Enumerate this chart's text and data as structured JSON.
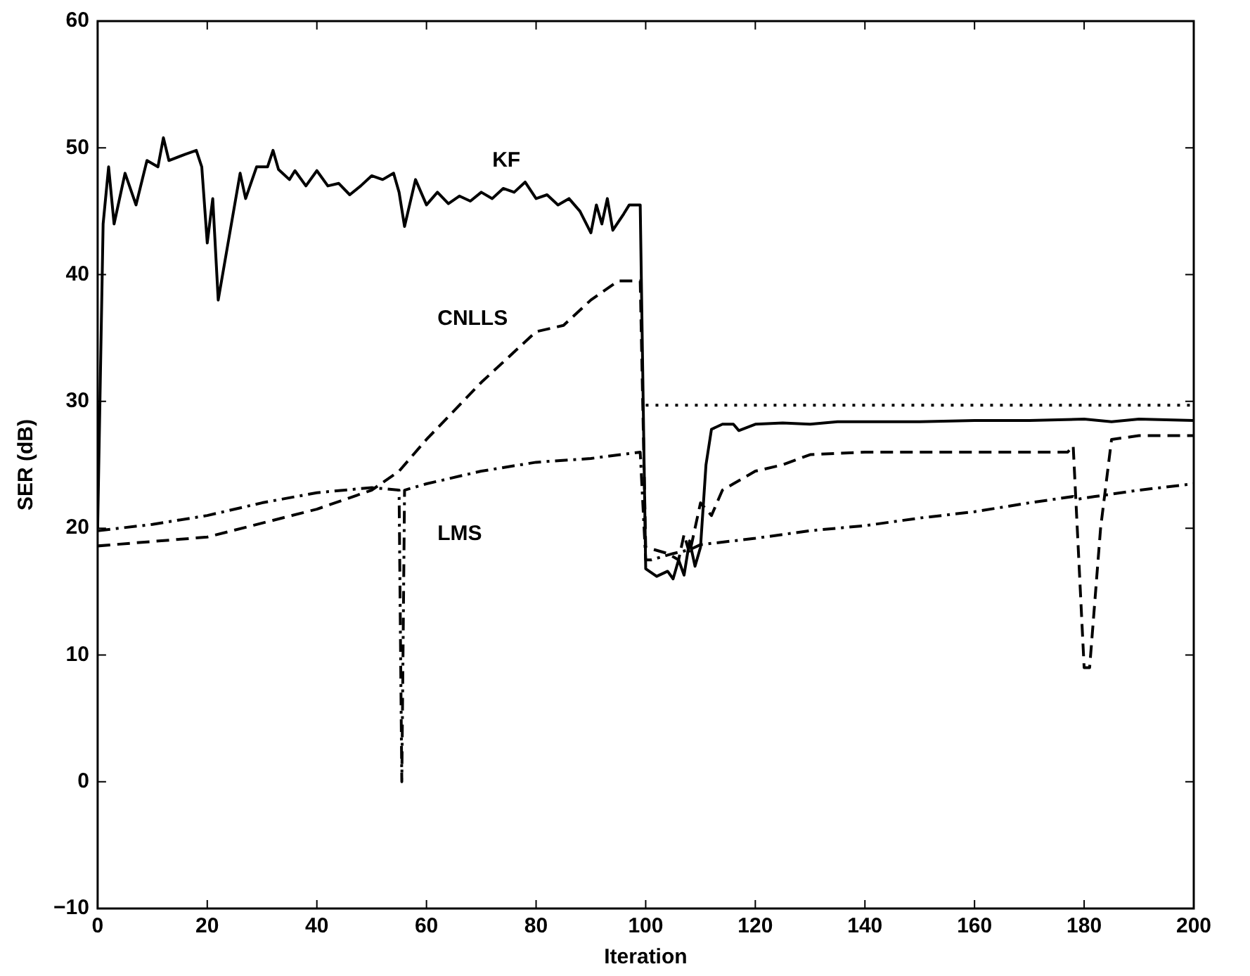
{
  "chart_data": {
    "type": "line",
    "xlabel": "Iteration",
    "ylabel": "SER (dB)",
    "xlim": [
      0,
      200
    ],
    "xticks": [
      0,
      20,
      40,
      60,
      80,
      100,
      120,
      140,
      160,
      180,
      200
    ],
    "ylim": [
      -10,
      60
    ],
    "yticks": [
      -10,
      0,
      10,
      20,
      30,
      40,
      50,
      60
    ],
    "grid": false,
    "legend": false,
    "marker": "none",
    "series": [
      {
        "name": "KF",
        "color": "#000000",
        "line_style": "solid",
        "x": [
          0,
          1,
          2,
          3,
          5,
          7,
          9,
          11,
          12,
          13,
          16,
          18,
          19,
          20,
          21,
          22,
          24,
          26,
          27,
          29,
          31,
          32,
          33,
          35,
          36,
          38,
          40,
          42,
          44,
          46,
          48,
          50,
          52,
          54,
          55,
          56,
          58,
          60,
          62,
          64,
          66,
          68,
          70,
          72,
          74,
          76,
          78,
          80,
          82,
          84,
          86,
          88,
          90,
          91,
          92,
          93,
          94,
          96,
          97,
          99,
          100,
          102,
          104,
          105,
          106,
          107,
          108,
          109,
          110,
          111,
          112,
          114,
          116,
          117,
          120,
          125,
          130,
          135,
          140,
          150,
          160,
          170,
          180,
          185,
          190,
          200
        ],
        "values": [
          20,
          44,
          48.5,
          44,
          48,
          45.5,
          49,
          48.5,
          50.8,
          49,
          49.5,
          49.8,
          48.5,
          42.5,
          46,
          38,
          43,
          48,
          46,
          48.5,
          48.5,
          49.8,
          48.3,
          47.5,
          48.2,
          47,
          48.2,
          47,
          47.2,
          46.3,
          47,
          47.8,
          47.5,
          48,
          46.5,
          43.8,
          47.5,
          45.5,
          46.5,
          45.6,
          46.2,
          45.8,
          46.5,
          46,
          46.8,
          46.5,
          47.3,
          46,
          46.3,
          45.5,
          46,
          45,
          43.3,
          45.5,
          44,
          46,
          43.5,
          44.8,
          45.5,
          45.5,
          16.8,
          16.2,
          16.6,
          16,
          17.5,
          16.3,
          19,
          17,
          18.5,
          25,
          27.8,
          28.2,
          28.2,
          27.7,
          28.2,
          28.3,
          28.2,
          28.4,
          28.4,
          28.4,
          28.5,
          28.5,
          28.6,
          28.4,
          28.6,
          28.5
        ]
      },
      {
        "name": "CNLLS",
        "color": "#000000",
        "line_style": "dashed",
        "x": [
          0,
          20,
          40,
          50,
          55,
          60,
          70,
          75,
          80,
          85,
          90,
          95,
          99,
          100,
          104,
          106,
          107,
          108,
          110,
          112,
          114,
          116,
          120,
          125,
          130,
          140,
          150,
          160,
          170,
          177,
          178,
          180,
          181,
          183,
          185,
          190,
          200
        ],
        "values": [
          18.6,
          19.3,
          21.5,
          23,
          24.5,
          27,
          31.5,
          33.5,
          35.5,
          36,
          38,
          39.5,
          39.5,
          18.5,
          18,
          17.5,
          19.5,
          18,
          22,
          21,
          23,
          23.5,
          24.5,
          25,
          25.8,
          26,
          26,
          26,
          26,
          26,
          26.5,
          9,
          9,
          20,
          27,
          27.3,
          27.3
        ]
      },
      {
        "name": "LMS",
        "color": "#000000",
        "line_style": "dashdot",
        "x": [
          0,
          10,
          20,
          30,
          40,
          50,
          55,
          55.5,
          56,
          60,
          70,
          80,
          90,
          99,
          100,
          101,
          105,
          108,
          110,
          120,
          130,
          140,
          150,
          160,
          170,
          178,
          179,
          182,
          190,
          200
        ],
        "values": [
          19.8,
          20.3,
          21,
          22,
          22.8,
          23.2,
          23,
          0,
          23,
          23.5,
          24.5,
          25.2,
          25.5,
          26,
          17.5,
          17.5,
          18,
          18.3,
          18.7,
          19.2,
          19.8,
          20.2,
          20.8,
          21.3,
          22,
          22.5,
          22.3,
          22.5,
          23,
          23.5
        ]
      },
      {
        "color": "#000000",
        "line_style": "dotted",
        "x": [
          100,
          200
        ],
        "values": [
          29.7,
          29.7
        ]
      }
    ]
  }
}
